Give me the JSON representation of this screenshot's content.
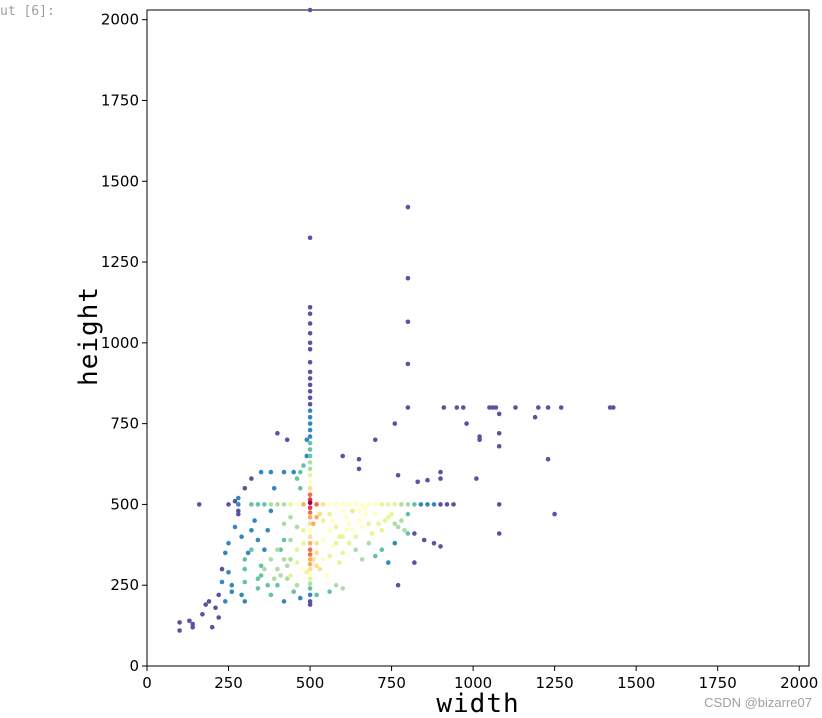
{
  "cell": {
    "prompt": "ut [6]:"
  },
  "watermark": "CSDN @bizarre07",
  "colors": {
    "colormap": [
      "#5e4fa2",
      "#3288bd",
      "#66c2a5",
      "#abdda4",
      "#e6f598",
      "#ffffbf",
      "#fee08b",
      "#fdae61",
      "#f46d43",
      "#d53e4f",
      "#9e0142"
    ]
  },
  "chart_data": {
    "type": "scatter",
    "title": "",
    "xlabel": "width",
    "ylabel": "height",
    "xlim": [
      0,
      2030
    ],
    "ylim": [
      0,
      2030
    ],
    "xticks": [
      0,
      250,
      500,
      750,
      1000,
      1250,
      1500,
      1750,
      2000
    ],
    "yticks": [
      0,
      250,
      500,
      750,
      1000,
      1250,
      1500,
      1750,
      2000
    ],
    "color_encoding": "point density (Spectral_r colormap)",
    "grid": false,
    "points": [
      [
        500,
        2030,
        0
      ],
      [
        500,
        1325,
        0
      ],
      [
        800,
        1420,
        0
      ],
      [
        800,
        1200,
        0
      ],
      [
        800,
        1065,
        0
      ],
      [
        800,
        935,
        0
      ],
      [
        800,
        800,
        0
      ],
      [
        500,
        1110,
        0
      ],
      [
        500,
        1090,
        0
      ],
      [
        500,
        1060,
        0
      ],
      [
        500,
        1030,
        0
      ],
      [
        500,
        1000,
        0
      ],
      [
        500,
        980,
        0
      ],
      [
        500,
        940,
        0
      ],
      [
        500,
        910,
        0
      ],
      [
        500,
        890,
        0
      ],
      [
        500,
        870,
        0
      ],
      [
        500,
        850,
        0
      ],
      [
        500,
        830,
        0
      ],
      [
        500,
        810,
        0
      ],
      [
        500,
        790,
        1
      ],
      [
        500,
        770,
        1
      ],
      [
        500,
        750,
        1
      ],
      [
        500,
        730,
        1
      ],
      [
        500,
        710,
        1
      ],
      [
        500,
        690,
        2
      ],
      [
        500,
        670,
        2
      ],
      [
        500,
        650,
        2
      ],
      [
        500,
        630,
        3
      ],
      [
        500,
        610,
        3
      ],
      [
        500,
        590,
        4
      ],
      [
        500,
        570,
        5
      ],
      [
        500,
        550,
        6
      ],
      [
        500,
        530,
        8
      ],
      [
        500,
        515,
        9
      ],
      [
        500,
        505,
        10
      ],
      [
        500,
        490,
        9
      ],
      [
        500,
        475,
        8
      ],
      [
        500,
        460,
        7
      ],
      [
        500,
        440,
        6
      ],
      [
        500,
        420,
        5
      ],
      [
        500,
        400,
        6
      ],
      [
        500,
        380,
        7
      ],
      [
        500,
        360,
        8
      ],
      [
        500,
        345,
        8
      ],
      [
        500,
        330,
        7
      ],
      [
        500,
        315,
        7
      ],
      [
        500,
        300,
        6
      ],
      [
        500,
        285,
        5
      ],
      [
        500,
        270,
        4
      ],
      [
        500,
        255,
        3
      ],
      [
        500,
        240,
        2
      ],
      [
        500,
        220,
        1
      ],
      [
        500,
        200,
        0
      ],
      [
        500,
        190,
        0
      ],
      [
        160,
        500,
        0
      ],
      [
        250,
        500,
        0
      ],
      [
        280,
        500,
        1
      ],
      [
        320,
        500,
        2
      ],
      [
        340,
        500,
        2
      ],
      [
        360,
        500,
        2
      ],
      [
        380,
        500,
        3
      ],
      [
        400,
        500,
        3
      ],
      [
        420,
        500,
        3
      ],
      [
        440,
        500,
        4
      ],
      [
        460,
        500,
        5
      ],
      [
        480,
        500,
        7
      ],
      [
        520,
        500,
        8
      ],
      [
        540,
        500,
        6
      ],
      [
        560,
        500,
        5
      ],
      [
        580,
        500,
        5
      ],
      [
        600,
        500,
        5
      ],
      [
        620,
        500,
        5
      ],
      [
        640,
        500,
        5
      ],
      [
        660,
        500,
        5
      ],
      [
        680,
        500,
        5
      ],
      [
        700,
        500,
        5
      ],
      [
        720,
        500,
        4
      ],
      [
        740,
        500,
        4
      ],
      [
        760,
        500,
        4
      ],
      [
        780,
        500,
        3
      ],
      [
        800,
        500,
        3
      ],
      [
        820,
        500,
        2
      ],
      [
        840,
        500,
        1
      ],
      [
        860,
        500,
        1
      ],
      [
        880,
        500,
        1
      ],
      [
        900,
        500,
        0
      ],
      [
        920,
        500,
        0
      ],
      [
        940,
        500,
        0
      ],
      [
        910,
        800,
        0
      ],
      [
        950,
        800,
        0
      ],
      [
        970,
        800,
        0
      ],
      [
        1050,
        800,
        0
      ],
      [
        1060,
        800,
        0
      ],
      [
        1070,
        800,
        0
      ],
      [
        1130,
        800,
        0
      ],
      [
        1200,
        800,
        0
      ],
      [
        1230,
        800,
        0
      ],
      [
        1270,
        800,
        0
      ],
      [
        1420,
        800,
        0
      ],
      [
        1430,
        800,
        0
      ],
      [
        1080,
        780,
        0
      ],
      [
        1190,
        770,
        0
      ],
      [
        980,
        750,
        0
      ],
      [
        1020,
        710,
        0
      ],
      [
        1080,
        720,
        0
      ],
      [
        1080,
        680,
        0
      ],
      [
        1020,
        700,
        0
      ],
      [
        1230,
        640,
        0
      ],
      [
        1010,
        580,
        0
      ],
      [
        900,
        600,
        0
      ],
      [
        900,
        580,
        0
      ],
      [
        830,
        570,
        0
      ],
      [
        860,
        575,
        0
      ],
      [
        770,
        590,
        0
      ],
      [
        760,
        750,
        0
      ],
      [
        700,
        700,
        0
      ],
      [
        600,
        650,
        0
      ],
      [
        650,
        640,
        0
      ],
      [
        650,
        610,
        0
      ],
      [
        1080,
        500,
        0
      ],
      [
        1080,
        410,
        0
      ],
      [
        1250,
        470,
        0
      ],
      [
        880,
        380,
        0
      ],
      [
        900,
        370,
        0
      ],
      [
        850,
        390,
        0
      ],
      [
        820,
        410,
        0
      ],
      [
        820,
        320,
        0
      ],
      [
        770,
        250,
        0
      ],
      [
        400,
        720,
        0
      ],
      [
        430,
        700,
        0
      ],
      [
        100,
        110,
        0
      ],
      [
        100,
        135,
        0
      ],
      [
        130,
        140,
        0
      ],
      [
        140,
        120,
        0
      ],
      [
        140,
        130,
        0
      ],
      [
        170,
        160,
        0
      ],
      [
        180,
        190,
        0
      ],
      [
        190,
        200,
        0
      ],
      [
        200,
        120,
        0
      ],
      [
        210,
        180,
        0
      ],
      [
        220,
        220,
        0
      ],
      [
        220,
        150,
        0
      ],
      [
        230,
        260,
        1
      ],
      [
        230,
        300,
        0
      ],
      [
        240,
        350,
        1
      ],
      [
        250,
        290,
        1
      ],
      [
        250,
        380,
        1
      ],
      [
        260,
        250,
        1
      ],
      [
        270,
        430,
        1
      ],
      [
        270,
        510,
        0
      ],
      [
        280,
        480,
        0
      ],
      [
        280,
        470,
        0
      ],
      [
        290,
        400,
        1
      ],
      [
        290,
        220,
        1
      ],
      [
        300,
        300,
        2
      ],
      [
        300,
        200,
        1
      ],
      [
        310,
        350,
        1
      ],
      [
        320,
        420,
        1
      ],
      [
        330,
        450,
        1
      ],
      [
        340,
        270,
        2
      ],
      [
        350,
        310,
        2
      ],
      [
        360,
        360,
        1
      ],
      [
        370,
        420,
        1
      ],
      [
        380,
        480,
        1
      ],
      [
        390,
        550,
        1
      ],
      [
        400,
        300,
        3
      ],
      [
        400,
        250,
        2
      ],
      [
        410,
        360,
        2
      ],
      [
        420,
        330,
        3
      ],
      [
        430,
        270,
        3
      ],
      [
        440,
        390,
        3
      ],
      [
        440,
        280,
        4
      ],
      [
        450,
        600,
        1
      ],
      [
        460,
        320,
        4
      ],
      [
        470,
        600,
        2
      ],
      [
        480,
        620,
        2
      ],
      [
        470,
        550,
        2
      ],
      [
        480,
        380,
        4
      ],
      [
        480,
        300,
        5
      ],
      [
        490,
        290,
        4
      ],
      [
        460,
        430,
        3
      ],
      [
        440,
        460,
        3
      ],
      [
        420,
        440,
        3
      ],
      [
        520,
        350,
        6
      ],
      [
        530,
        300,
        6
      ],
      [
        540,
        390,
        5
      ],
      [
        550,
        280,
        5
      ],
      [
        560,
        420,
        5
      ],
      [
        570,
        450,
        5
      ],
      [
        580,
        380,
        4
      ],
      [
        590,
        320,
        4
      ],
      [
        600,
        400,
        4
      ],
      [
        600,
        480,
        5
      ],
      [
        610,
        460,
        5
      ],
      [
        620,
        440,
        5
      ],
      [
        630,
        420,
        5
      ],
      [
        640,
        400,
        4
      ],
      [
        650,
        450,
        5
      ],
      [
        660,
        430,
        5
      ],
      [
        670,
        470,
        5
      ],
      [
        680,
        440,
        4
      ],
      [
        690,
        410,
        4
      ],
      [
        700,
        470,
        5
      ],
      [
        710,
        440,
        4
      ],
      [
        720,
        420,
        4
      ],
      [
        730,
        450,
        4
      ],
      [
        740,
        460,
        4
      ],
      [
        750,
        470,
        4
      ],
      [
        760,
        440,
        3
      ],
      [
        770,
        430,
        3
      ],
      [
        780,
        450,
        3
      ],
      [
        790,
        420,
        3
      ],
      [
        800,
        410,
        2
      ],
      [
        800,
        470,
        2
      ],
      [
        540,
        450,
        4
      ],
      [
        560,
        470,
        4
      ],
      [
        580,
        430,
        4
      ],
      [
        600,
        350,
        4
      ],
      [
        620,
        380,
        4
      ],
      [
        640,
        360,
        3
      ],
      [
        660,
        330,
        3
      ],
      [
        680,
        380,
        3
      ],
      [
        700,
        340,
        2
      ],
      [
        720,
        360,
        2
      ],
      [
        740,
        320,
        1
      ],
      [
        760,
        380,
        1
      ],
      [
        650,
        480,
        5
      ],
      [
        630,
        480,
        6
      ],
      [
        670,
        490,
        5
      ],
      [
        560,
        340,
        4
      ],
      [
        570,
        370,
        5
      ],
      [
        590,
        400,
        4
      ],
      [
        610,
        420,
        5
      ],
      [
        540,
        330,
        5
      ],
      [
        520,
        310,
        6
      ],
      [
        510,
        330,
        6
      ],
      [
        520,
        380,
        6
      ],
      [
        510,
        440,
        7
      ],
      [
        520,
        460,
        7
      ],
      [
        530,
        470,
        6
      ],
      [
        600,
        240,
        3
      ],
      [
        580,
        250,
        3
      ],
      [
        560,
        230,
        2
      ],
      [
        520,
        220,
        2
      ],
      [
        460,
        250,
        3
      ],
      [
        420,
        200,
        1
      ],
      [
        380,
        220,
        2
      ],
      [
        340,
        240,
        2
      ],
      [
        300,
        260,
        2
      ],
      [
        260,
        230,
        1
      ],
      [
        240,
        200,
        1
      ],
      [
        320,
        580,
        0
      ],
      [
        300,
        550,
        0
      ],
      [
        280,
        520,
        1
      ],
      [
        350,
        600,
        1
      ],
      [
        380,
        600,
        1
      ],
      [
        420,
        600,
        1
      ],
      [
        460,
        580,
        2
      ],
      [
        490,
        650,
        1
      ],
      [
        490,
        700,
        1
      ],
      [
        300,
        330,
        2
      ],
      [
        320,
        360,
        2
      ],
      [
        340,
        390,
        1
      ],
      [
        360,
        300,
        3
      ],
      [
        380,
        330,
        3
      ],
      [
        400,
        360,
        3
      ],
      [
        420,
        390,
        2
      ],
      [
        440,
        330,
        3
      ],
      [
        460,
        360,
        4
      ],
      [
        480,
        420,
        4
      ],
      [
        450,
        230,
        2
      ],
      [
        470,
        210,
        1
      ],
      [
        430,
        310,
        3
      ],
      [
        410,
        280,
        3
      ],
      [
        390,
        270,
        3
      ],
      [
        370,
        250,
        2
      ],
      [
        350,
        280,
        2
      ]
    ]
  }
}
